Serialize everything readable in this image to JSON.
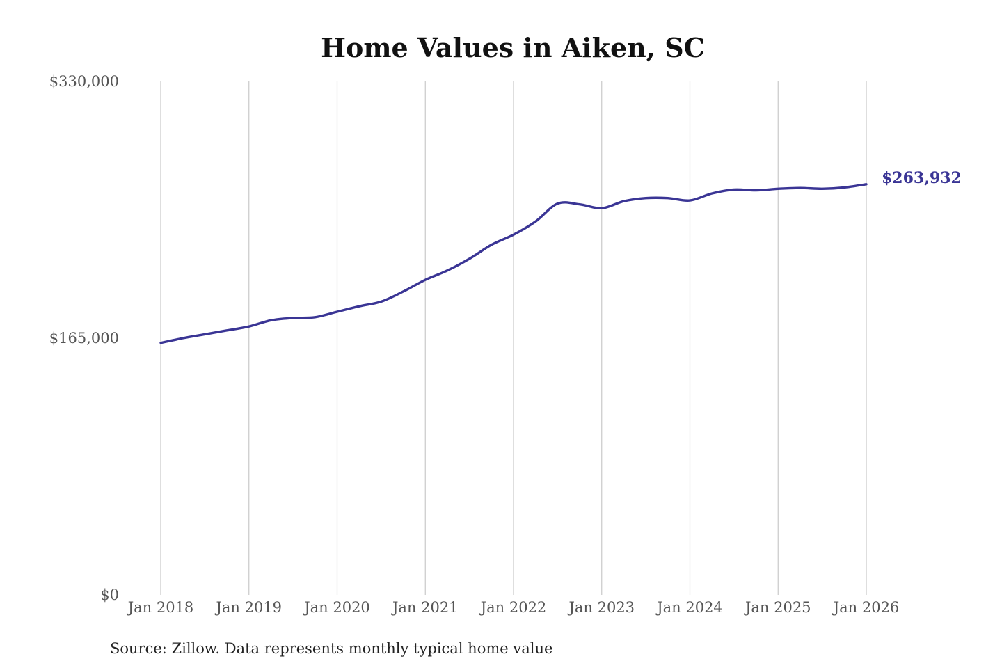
{
  "chart_data": {
    "type": "line",
    "title": "Home Values in Aiken, SC",
    "source": "Source: Zillow. Data represents monthly typical home value",
    "ylim": [
      0,
      330000
    ],
    "yticks": [
      0,
      165000,
      330000
    ],
    "ytick_labels": [
      "$0",
      "$165,000",
      "$330,000"
    ],
    "xlim": [
      "2018-01",
      "2026-01"
    ],
    "xticks": [
      "2018-01",
      "2019-01",
      "2020-01",
      "2021-01",
      "2022-01",
      "2023-01",
      "2024-01",
      "2025-01",
      "2026-01"
    ],
    "xtick_labels": [
      "Jan 2018",
      "Jan 2019",
      "Jan 2020",
      "Jan 2021",
      "Jan 2022",
      "Jan 2023",
      "Jan 2024",
      "Jan 2025",
      "Jan 2026"
    ],
    "grid": "vertical",
    "line_color": "#3a3595",
    "series": [
      {
        "name": "",
        "points": [
          {
            "x": "2018-01",
            "y": 162000
          },
          {
            "x": "2018-04",
            "y": 165000
          },
          {
            "x": "2018-07",
            "y": 167500
          },
          {
            "x": "2018-10",
            "y": 170000
          },
          {
            "x": "2019-01",
            "y": 172500
          },
          {
            "x": "2019-04",
            "y": 176500
          },
          {
            "x": "2019-07",
            "y": 178000
          },
          {
            "x": "2019-10",
            "y": 178500
          },
          {
            "x": "2020-01",
            "y": 182000
          },
          {
            "x": "2020-04",
            "y": 185500
          },
          {
            "x": "2020-07",
            "y": 188500
          },
          {
            "x": "2020-10",
            "y": 195000
          },
          {
            "x": "2021-01",
            "y": 202500
          },
          {
            "x": "2021-04",
            "y": 208500
          },
          {
            "x": "2021-07",
            "y": 216000
          },
          {
            "x": "2021-10",
            "y": 225000
          },
          {
            "x": "2022-01",
            "y": 231500
          },
          {
            "x": "2022-04",
            "y": 240000
          },
          {
            "x": "2022-07",
            "y": 251500
          },
          {
            "x": "2022-10",
            "y": 251000
          },
          {
            "x": "2023-01",
            "y": 248500
          },
          {
            "x": "2023-04",
            "y": 253000
          },
          {
            "x": "2023-07",
            "y": 255000
          },
          {
            "x": "2023-10",
            "y": 255000
          },
          {
            "x": "2024-01",
            "y": 253500
          },
          {
            "x": "2024-04",
            "y": 258000
          },
          {
            "x": "2024-07",
            "y": 260500
          },
          {
            "x": "2024-10",
            "y": 260000
          },
          {
            "x": "2025-01",
            "y": 261000
          },
          {
            "x": "2025-04",
            "y": 261500
          },
          {
            "x": "2025-07",
            "y": 261000
          },
          {
            "x": "2025-10",
            "y": 261800
          },
          {
            "x": "2026-01",
            "y": 263932
          }
        ]
      }
    ],
    "end_label": "$263,932"
  }
}
